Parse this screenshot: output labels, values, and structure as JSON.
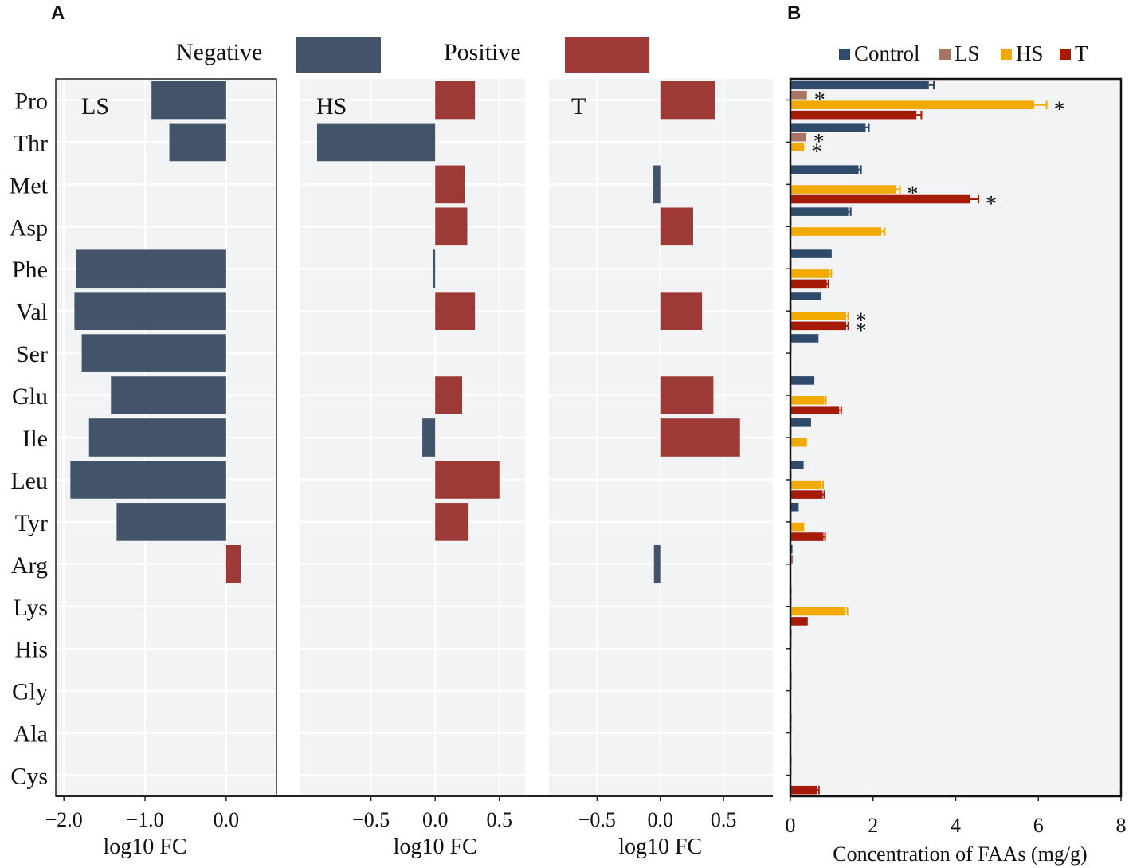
{
  "figure": {
    "panel_a_label": "A",
    "panel_b_label": "B"
  },
  "colors": {
    "negative": "#435369",
    "positive": "#9e3a36",
    "control": "#2f4a6b",
    "ls": "#a97464",
    "hs": "#f2a900",
    "t": "#a61b06",
    "panel_bg": "#f1f3f5",
    "grid": "#ffffff"
  },
  "chart_data": [
    {
      "type": "bar",
      "orientation": "horizontal",
      "panel": "A",
      "legend": {
        "items": [
          {
            "name": "Negative",
            "color": "#435369"
          },
          {
            "name": "Positive",
            "color": "#9e3a36"
          }
        ],
        "placement": "top-center"
      },
      "categories": [
        "Pro",
        "Thr",
        "Met",
        "Asp",
        "Phe",
        "Val",
        "Ser",
        "Glu",
        "Ile",
        "Leu",
        "Tyr",
        "Arg",
        "Lys",
        "His",
        "Gly",
        "Ala",
        "Cys"
      ],
      "facets": [
        {
          "label": "LS",
          "xlabel": "log10 FC",
          "xlim": [
            -2.1,
            0.62
          ],
          "xticks": [
            -2.0,
            -1.0,
            0.0
          ],
          "xtick_labels": [
            "−2.0",
            "−1.0",
            "0.0"
          ],
          "values": [
            -0.92,
            -0.7,
            null,
            null,
            -1.85,
            -1.87,
            -1.78,
            -1.42,
            -1.69,
            -1.92,
            -1.35,
            0.18,
            null,
            null,
            null,
            null,
            null
          ]
        },
        {
          "label": "HS",
          "xlabel": "log10 FC",
          "xlim": [
            -1.05,
            0.7
          ],
          "xticks": [
            -0.5,
            0.0,
            0.5
          ],
          "xtick_labels": [
            "−0.5",
            "0.0",
            "0.5"
          ],
          "values": [
            0.31,
            -0.92,
            0.23,
            0.25,
            -0.02,
            0.31,
            null,
            0.21,
            -0.1,
            0.5,
            0.26,
            null,
            null,
            null,
            null,
            null,
            null
          ]
        },
        {
          "label": "T",
          "xlabel": "log10 FC",
          "xlim": [
            -0.88,
            0.89
          ],
          "xticks": [
            -0.5,
            0.0,
            0.5
          ],
          "xtick_labels": [
            "−0.5",
            "0.0",
            "0.5"
          ],
          "values": [
            0.43,
            null,
            -0.06,
            0.26,
            null,
            0.33,
            null,
            0.42,
            0.63,
            null,
            null,
            -0.05,
            null,
            null,
            null,
            null,
            null
          ]
        }
      ]
    },
    {
      "type": "bar",
      "orientation": "horizontal",
      "panel": "B",
      "xlabel": "Concentration of FAAs (mg/g)",
      "xlim": [
        0,
        8
      ],
      "xticks": [
        0,
        2,
        4,
        6,
        8
      ],
      "xtick_labels": [
        "0",
        "2",
        "4",
        "6",
        "8"
      ],
      "legend": {
        "placement": "top"
      },
      "categories": [
        "Pro",
        "Thr",
        "Met",
        "Asp",
        "Phe",
        "Val",
        "Ser",
        "Glu",
        "Ile",
        "Leu",
        "Tyr",
        "Arg",
        "Lys",
        "His",
        "Gly",
        "Ala",
        "Cys"
      ],
      "series": [
        {
          "name": "Control",
          "color": "#2f4a6b",
          "values": [
            3.35,
            1.82,
            1.65,
            1.4,
            1.0,
            0.75,
            0.68,
            0.58,
            0.5,
            0.32,
            0.2,
            0.05,
            0.02,
            0.01,
            0.01,
            0.01,
            0.01
          ],
          "errors": [
            0.12,
            0.08,
            0.06,
            0.06,
            0.0,
            0.0,
            0.0,
            0.0,
            0.0,
            0.0,
            0.0,
            0.0,
            0.0,
            0.0,
            0.0,
            0.0,
            0.0
          ]
        },
        {
          "name": "LS",
          "color": "#a97464",
          "values": [
            0.4,
            0.38,
            0.01,
            0.01,
            0.01,
            0.01,
            0.01,
            0.01,
            0.01,
            0.01,
            0.01,
            0.06,
            0.02,
            0.01,
            0.03,
            0.02,
            0.02
          ],
          "errors": [
            0.0,
            0.0,
            0.0,
            0.0,
            0.0,
            0.0,
            0.0,
            0.0,
            0.0,
            0.0,
            0.0,
            0.0,
            0.0,
            0.0,
            0.0,
            0.0,
            0.0
          ]
        },
        {
          "name": "HS",
          "color": "#f2a900",
          "values": [
            5.9,
            0.33,
            2.55,
            2.2,
            0.95,
            1.35,
            null,
            0.82,
            0.4,
            0.75,
            0.33,
            null,
            1.33,
            null,
            null,
            null,
            null
          ],
          "errors": [
            0.3,
            0.0,
            0.1,
            0.08,
            0.04,
            0.05,
            null,
            0.04,
            0.0,
            0.04,
            0.0,
            null,
            0.05,
            null,
            null,
            null,
            null
          ]
        },
        {
          "name": "T",
          "color": "#a61b06",
          "values": [
            3.05,
            null,
            4.35,
            null,
            0.88,
            1.35,
            null,
            1.18,
            null,
            0.78,
            0.8,
            null,
            0.42,
            null,
            null,
            null,
            0.65
          ],
          "errors": [
            0.12,
            null,
            0.2,
            null,
            0.04,
            0.05,
            null,
            0.05,
            null,
            0.04,
            0.04,
            null,
            0.0,
            null,
            null,
            null,
            0.04
          ]
        }
      ],
      "annotations": [
        {
          "text": "*",
          "category": "Pro",
          "series": "LS"
        },
        {
          "text": "*",
          "category": "Pro",
          "series": "HS"
        },
        {
          "text": "*",
          "category": "Thr",
          "series": "LS"
        },
        {
          "text": "*",
          "category": "Thr",
          "series": "HS"
        },
        {
          "text": "*",
          "category": "Met",
          "series": "HS"
        },
        {
          "text": "*",
          "category": "Met",
          "series": "T"
        },
        {
          "text": "*",
          "category": "Val",
          "series": "HS"
        },
        {
          "text": "*",
          "category": "Val",
          "series": "T"
        }
      ]
    }
  ]
}
